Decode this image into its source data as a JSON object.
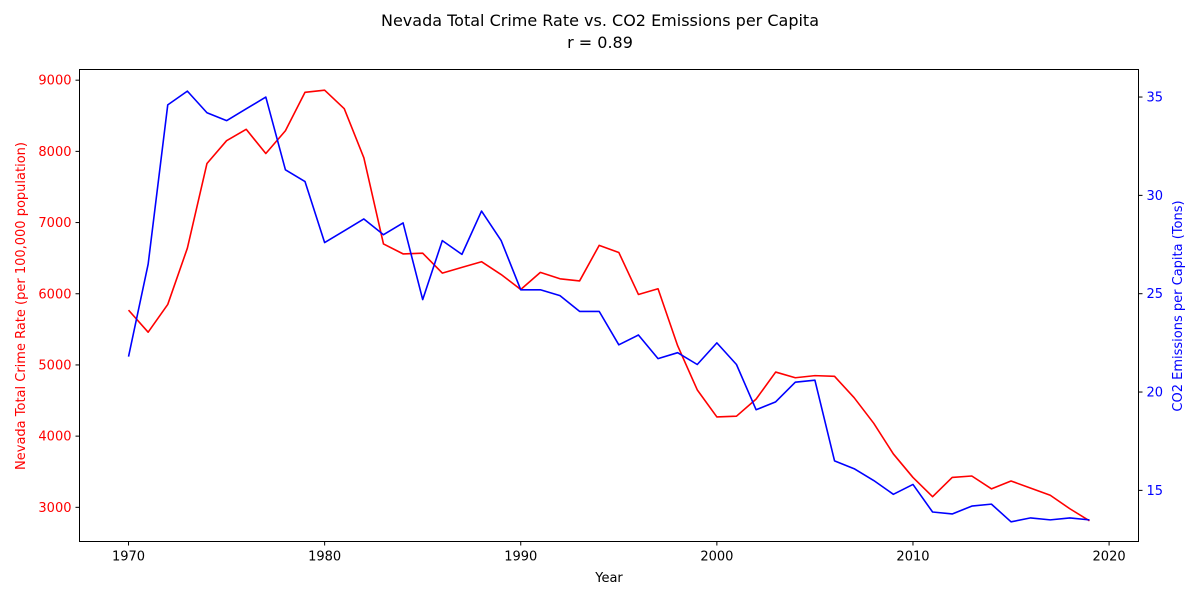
{
  "chart_data": {
    "type": "line",
    "title": "Nevada Total Crime Rate vs. CO2 Emissions per Capita",
    "subtitle": "r = 0.89",
    "xlabel": "Year",
    "ylabel_left": "Nevada Total Crime Rate (per 100,000 population)",
    "ylabel_right": "CO2 Emissions per Capita (Tons)",
    "xlim": [
      1967.5,
      2021.5
    ],
    "ylim_left": [
      2520,
      9150
    ],
    "ylim_right": [
      12.4,
      36.4
    ],
    "x_ticks": [
      1970,
      1980,
      1990,
      2000,
      2010,
      2020
    ],
    "y_ticks_left": [
      3000,
      4000,
      5000,
      6000,
      7000,
      8000,
      9000
    ],
    "y_ticks_right": [
      15,
      20,
      25,
      30,
      35
    ],
    "grid": false,
    "legend": "none",
    "x": [
      1970,
      1971,
      1972,
      1973,
      1974,
      1975,
      1976,
      1977,
      1978,
      1979,
      1980,
      1981,
      1982,
      1983,
      1984,
      1985,
      1986,
      1987,
      1988,
      1989,
      1990,
      1991,
      1992,
      1993,
      1994,
      1995,
      1996,
      1997,
      1998,
      1999,
      2000,
      2001,
      2002,
      2003,
      2004,
      2005,
      2006,
      2007,
      2008,
      2009,
      2010,
      2011,
      2012,
      2013,
      2014,
      2015,
      2016,
      2017,
      2018,
      2019
    ],
    "series": [
      {
        "axis": "left",
        "color": "#ff0000",
        "values": [
          5770,
          5460,
          5850,
          6640,
          7830,
          8150,
          8310,
          7970,
          8290,
          8830,
          8860,
          8600,
          7910,
          6700,
          6560,
          6570,
          6290,
          6370,
          6450,
          6270,
          6060,
          6300,
          6210,
          6180,
          6680,
          6580,
          5990,
          6070,
          5270,
          4650,
          4270,
          4280,
          4520,
          4900,
          4820,
          4850,
          4840,
          4540,
          4180,
          3750,
          3420,
          3150,
          3420,
          3440,
          3260,
          3370,
          3270,
          3170,
          2980,
          2810
        ]
      },
      {
        "axis": "right",
        "color": "#0000ff",
        "values": [
          21.8,
          26.5,
          34.6,
          35.3,
          34.2,
          33.8,
          34.4,
          35.0,
          31.3,
          30.7,
          27.6,
          28.2,
          28.8,
          28.0,
          28.6,
          24.7,
          27.7,
          27.0,
          29.2,
          27.7,
          25.2,
          25.2,
          24.9,
          24.1,
          24.1,
          22.4,
          22.9,
          21.7,
          22.0,
          21.4,
          22.5,
          21.4,
          19.1,
          19.5,
          20.5,
          20.6,
          16.5,
          16.1,
          15.5,
          14.8,
          15.3,
          13.9,
          13.8,
          14.2,
          14.3,
          13.4,
          13.6,
          13.5,
          13.6,
          13.5
        ]
      }
    ]
  }
}
